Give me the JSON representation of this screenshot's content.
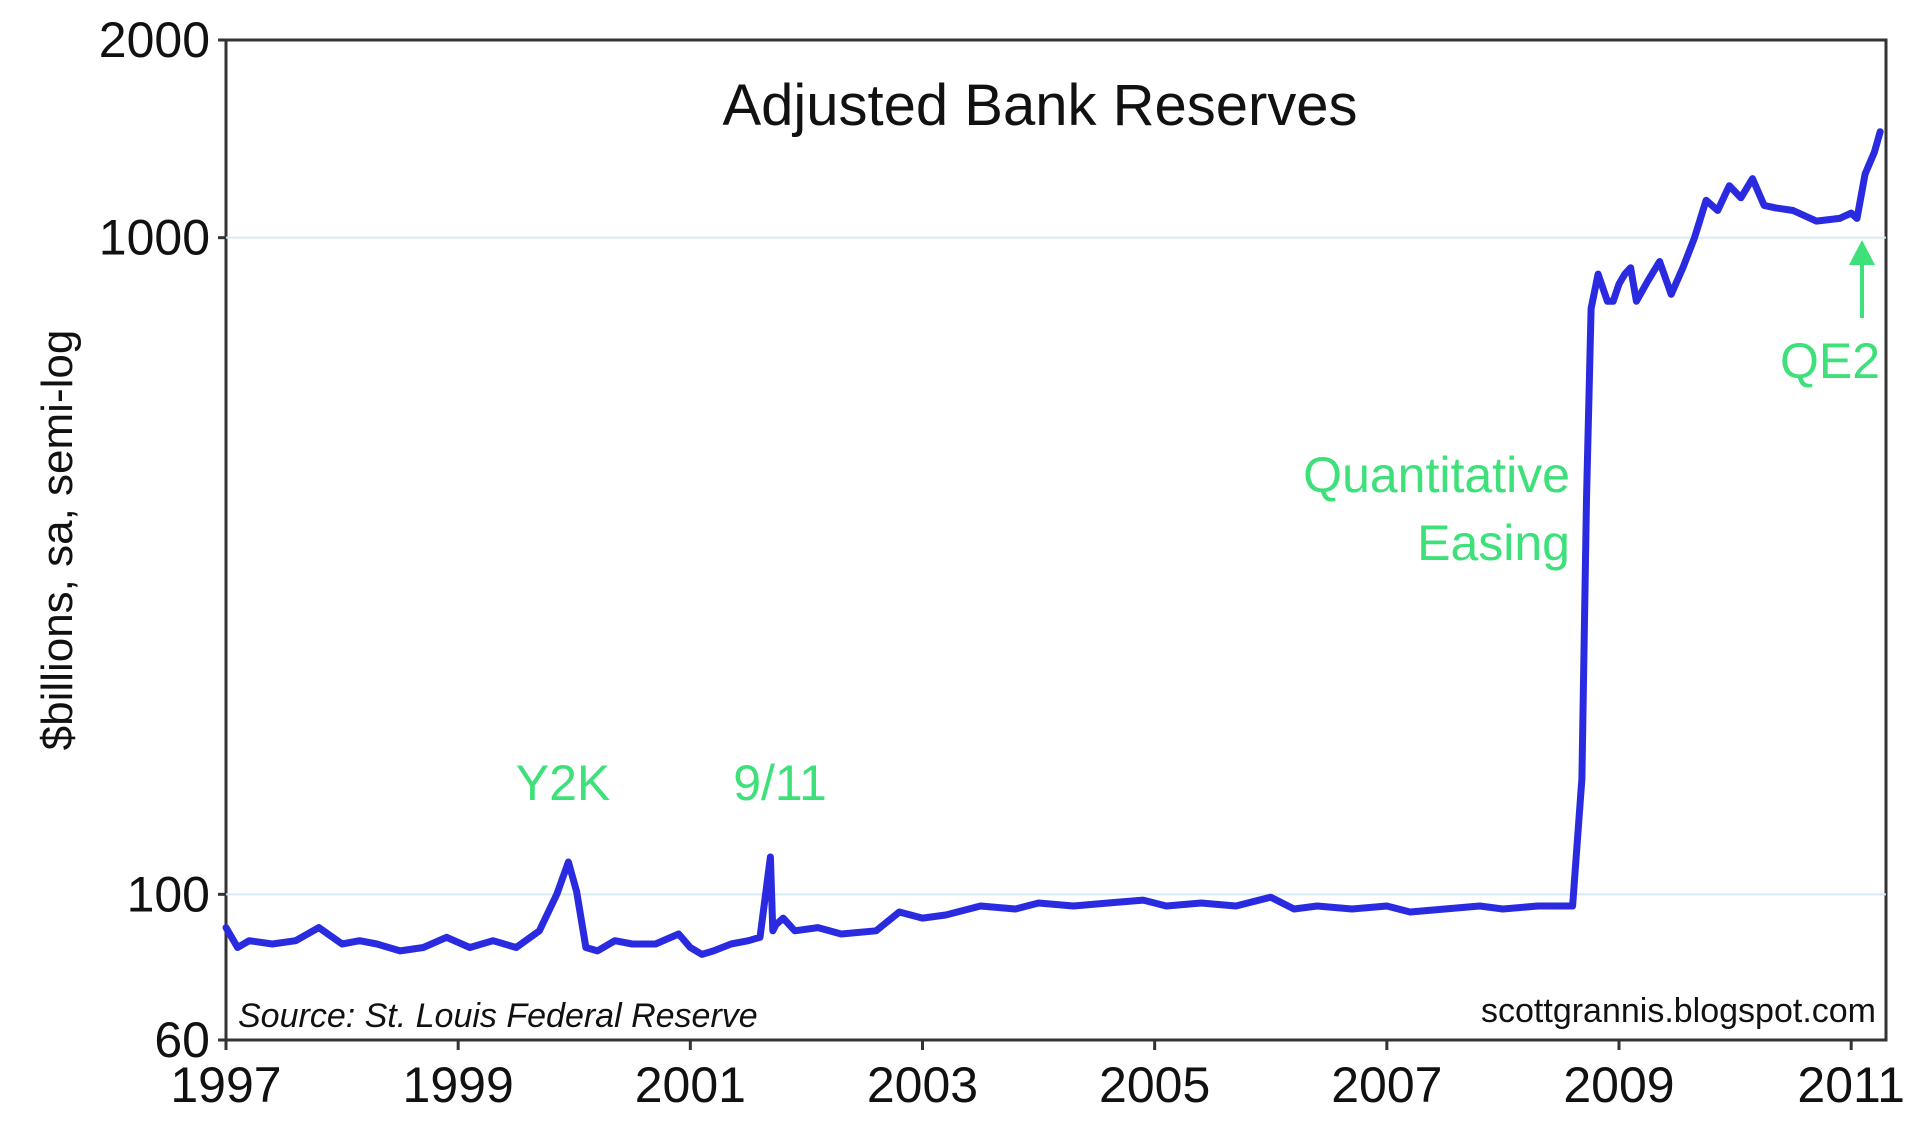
{
  "chart_data": {
    "type": "line",
    "title": "Adjusted Bank Reserves",
    "xlabel": "",
    "ylabel": "$billions, sa, semi-log",
    "y_scale": "log",
    "xlim": [
      1997,
      2011.3
    ],
    "ylim": [
      60,
      2000
    ],
    "y_ticks": [
      60,
      100,
      1000,
      2000
    ],
    "y_tick_labels": [
      "60",
      "100",
      "1000",
      "2000"
    ],
    "x_ticks": [
      1997,
      1999,
      2001,
      2003,
      2005,
      2007,
      2009,
      2011
    ],
    "x_tick_labels": [
      "1997",
      "1999",
      "2001",
      "2003",
      "2005",
      "2007",
      "2009",
      "2011"
    ],
    "gridlines": [
      100,
      1000
    ],
    "line_color": "#2a2be0",
    "annotation_color": "#3ee07a",
    "series": [
      {
        "x": [
          1997.0,
          1997.1,
          1997.2,
          1997.4,
          1997.6,
          1997.8,
          1998.0,
          1998.15,
          1998.3,
          1998.5,
          1998.7,
          1998.9,
          1999.1,
          1999.3,
          1999.5,
          1999.7,
          1999.85,
          1999.95,
          2000.02,
          2000.1,
          2000.2,
          2000.35,
          2000.5,
          2000.7,
          2000.9,
          2001.0,
          2001.1,
          2001.2,
          2001.35,
          2001.5,
          2001.6,
          2001.69,
          2001.71,
          2001.74,
          2001.8,
          2001.9,
          2002.1,
          2002.3,
          2002.6,
          2002.8,
          2003.0,
          2003.2,
          2003.5,
          2003.8,
          2004.0,
          2004.3,
          2004.6,
          2004.9,
          2005.1,
          2005.4,
          2005.7,
          2006.0,
          2006.2,
          2006.4,
          2006.7,
          2007.0,
          2007.2,
          2007.5,
          2007.8,
          2008.0,
          2008.3,
          2008.6,
          2008.68,
          2008.72,
          2008.76,
          2008.82,
          2008.9,
          2008.95,
          2009.0,
          2009.05,
          2009.1,
          2009.15,
          2009.25,
          2009.35,
          2009.45,
          2009.55,
          2009.65,
          2009.75,
          2009.85,
          2009.95,
          2010.05,
          2010.15,
          2010.25,
          2010.35,
          2010.5,
          2010.7,
          2010.9,
          2011.0,
          2011.05,
          2011.12,
          2011.2,
          2011.25
        ],
        "y": [
          89,
          83,
          85,
          84,
          85,
          89,
          84,
          85,
          84,
          82,
          83,
          86,
          83,
          85,
          83,
          88,
          100,
          112,
          101,
          83,
          82,
          85,
          84,
          84,
          87,
          83,
          81,
          82,
          84,
          85,
          86,
          114,
          88,
          90,
          92,
          88,
          89,
          87,
          88,
          94,
          92,
          93,
          96,
          95,
          97,
          96,
          97,
          98,
          96,
          97,
          96,
          99,
          95,
          96,
          95,
          96,
          94,
          95,
          96,
          95,
          96,
          96,
          150,
          400,
          780,
          880,
          800,
          800,
          850,
          880,
          900,
          800,
          860,
          920,
          820,
          900,
          1000,
          1140,
          1100,
          1200,
          1150,
          1230,
          1120,
          1110,
          1100,
          1060,
          1070,
          1090,
          1070,
          1250,
          1350,
          1450
        ]
      }
    ],
    "annotations": [
      {
        "text": "Y2K"
      },
      {
        "text": "9/11"
      },
      {
        "text": "Quantitative"
      },
      {
        "text": "Easing"
      },
      {
        "text": "QE2"
      }
    ],
    "source_text": "Source:  St. Louis Federal Reserve",
    "credit_text": "scottgrannis.blogspot.com"
  }
}
